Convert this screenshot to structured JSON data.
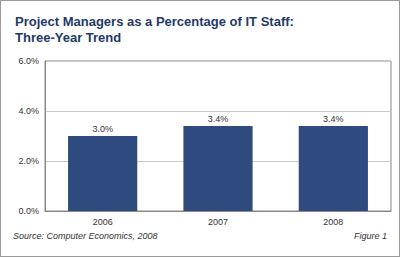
{
  "chart_data": {
    "type": "bar",
    "title": "Project Managers as a Percentage of IT Staff: Three-Year Trend",
    "categories": [
      "2006",
      "2007",
      "2008"
    ],
    "values": [
      3.0,
      3.4,
      3.4
    ],
    "value_labels": [
      "3.0%",
      "3.4%",
      "3.4%"
    ],
    "data_labels": true,
    "color": "#2e4a7f",
    "ylim": [
      0,
      6
    ],
    "yticks": [
      {
        "value": 0,
        "label": "0.0%"
      },
      {
        "value": 2,
        "label": "2.0%"
      },
      {
        "value": 4,
        "label": "4.0%"
      },
      {
        "value": 6,
        "label": "6.0%"
      }
    ],
    "grid": true,
    "source": "Source: Computer Economics, 2008",
    "figure": "Figure 1"
  }
}
